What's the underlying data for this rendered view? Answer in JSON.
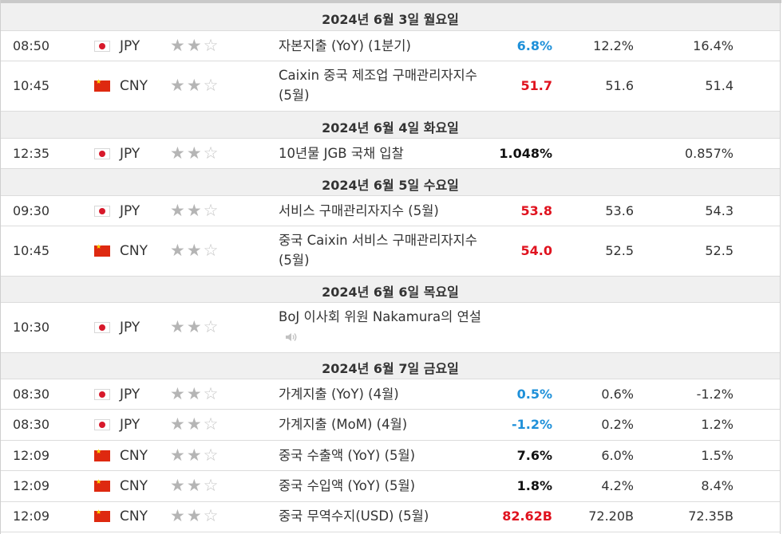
{
  "colors": {
    "positive": "#e0131f",
    "negative": "#1e90d9",
    "neutral": "#111111",
    "day_header_bg": "#f0f0f0"
  },
  "day_headers": [
    "2024년 6월 3일 월요일",
    "2024년 6월 4일 화요일",
    "2024년 6월 5일 수요일",
    "2024년 6월 6일 목요일",
    "2024년 6월 7일 금요일"
  ],
  "events": [
    {
      "time": "08:50",
      "currency": "JPY",
      "event": "자본지출 (YoY) (1분기)",
      "actual": "6.8%",
      "forecast": "12.2%",
      "previous": "16.4%",
      "actual_color": "blue"
    },
    {
      "time": "10:45",
      "currency": "CNY",
      "event": "Caixin 중국 제조업 구매관리자지수 (5월)",
      "actual": "51.7",
      "forecast": "51.6",
      "previous": "51.4",
      "actual_color": "red"
    },
    {
      "time": "12:35",
      "currency": "JPY",
      "event": "10년물 JGB 국채 입찰",
      "actual": "1.048%",
      "forecast": "",
      "previous": "0.857%",
      "actual_color": "black"
    },
    {
      "time": "09:30",
      "currency": "JPY",
      "event": "서비스 구매관리자지수 (5월)",
      "actual": "53.8",
      "forecast": "53.6",
      "previous": "54.3",
      "actual_color": "red"
    },
    {
      "time": "10:45",
      "currency": "CNY",
      "event": "중국 Caixin 서비스 구매관리자지수 (5월)",
      "actual": "54.0",
      "forecast": "52.5",
      "previous": "52.5",
      "actual_color": "red"
    },
    {
      "time": "10:30",
      "currency": "JPY",
      "event": "BoJ 이사회 위원 Nakamura의 연설",
      "actual": "",
      "forecast": "",
      "previous": "",
      "actual_color": "black",
      "icon": "speaker-icon"
    },
    {
      "time": "08:30",
      "currency": "JPY",
      "event": "가계지출 (YoY) (4월)",
      "actual": "0.5%",
      "forecast": "0.6%",
      "previous": "-1.2%",
      "actual_color": "blue"
    },
    {
      "time": "08:30",
      "currency": "JPY",
      "event": "가계지출 (MoM) (4월)",
      "actual": "-1.2%",
      "forecast": "0.2%",
      "previous": "1.2%",
      "actual_color": "blue"
    },
    {
      "time": "12:09",
      "currency": "CNY",
      "event": "중국 수출액 (YoY) (5월)",
      "actual": "7.6%",
      "forecast": "6.0%",
      "previous": "1.5%",
      "actual_color": "black"
    },
    {
      "time": "12:09",
      "currency": "CNY",
      "event": "중국 수입액 (YoY) (5월)",
      "actual": "1.8%",
      "forecast": "4.2%",
      "previous": "8.4%",
      "actual_color": "black"
    },
    {
      "time": "12:09",
      "currency": "CNY",
      "event": "중국 무역수지(USD) (5월)",
      "actual": "82.62B",
      "forecast": "72.20B",
      "previous": "72.35B",
      "actual_color": "red"
    }
  ],
  "importance": {
    "filled": 2,
    "total": 3
  }
}
